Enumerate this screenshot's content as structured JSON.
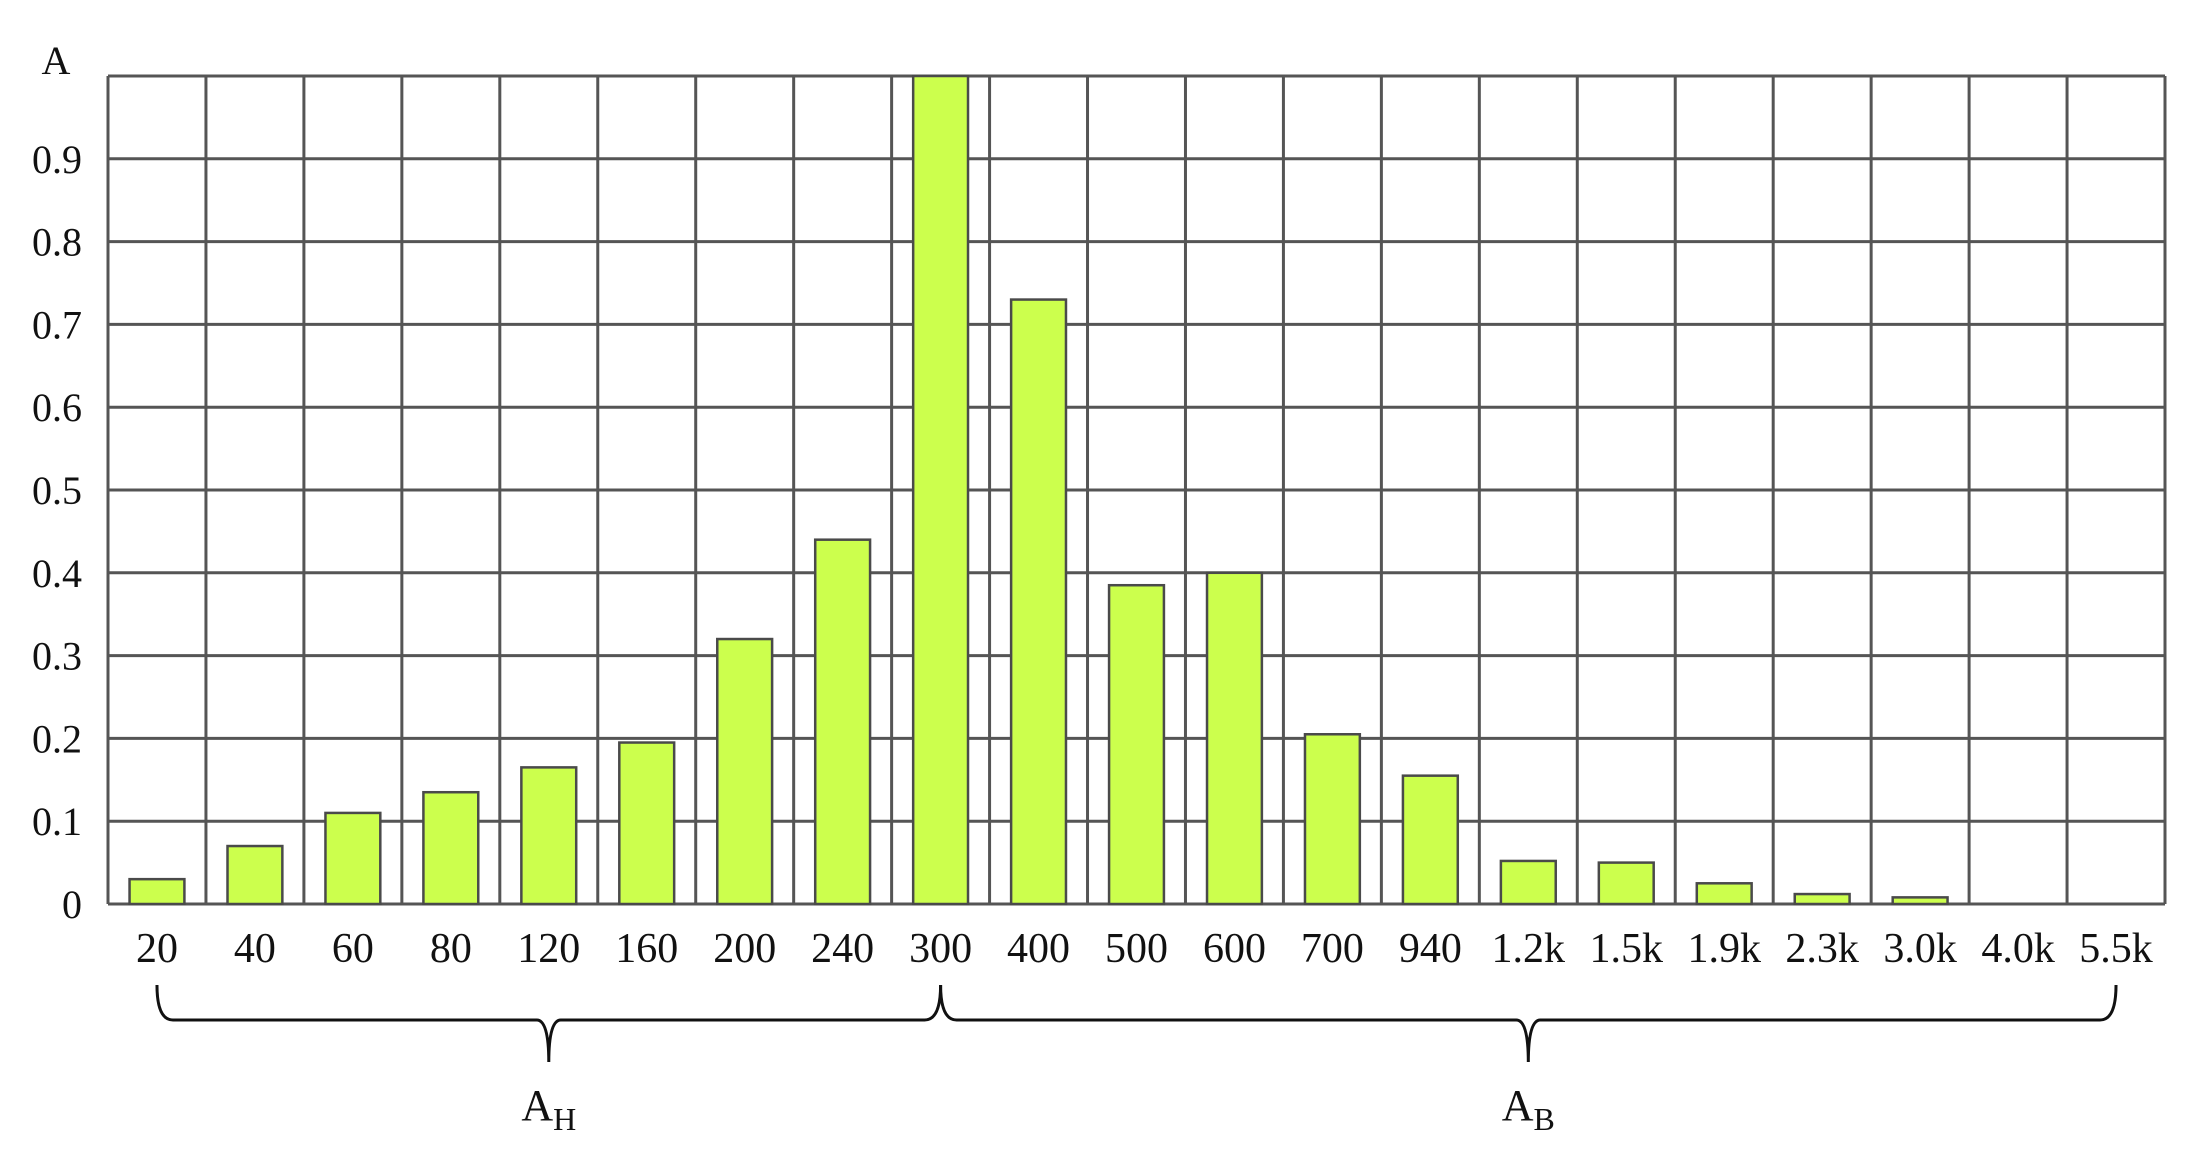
{
  "chart_data": {
    "type": "bar",
    "ylabel": "A",
    "categories": [
      "20",
      "40",
      "60",
      "80",
      "120",
      "160",
      "200",
      "240",
      "300",
      "400",
      "500",
      "600",
      "700",
      "940",
      "1.2k",
      "1.5k",
      "1.9k",
      "2.3k",
      "3.0k",
      "4.0k",
      "5.5k"
    ],
    "values": [
      0.03,
      0.07,
      0.11,
      0.135,
      0.165,
      0.195,
      0.32,
      0.44,
      1.0,
      0.73,
      0.385,
      0.4,
      0.205,
      0.155,
      0.052,
      0.05,
      0.025,
      0.012,
      0.008,
      0,
      0
    ],
    "yticks": [
      "0",
      "0.1",
      "0.2",
      "0.3",
      "0.4",
      "0.5",
      "0.6",
      "0.7",
      "0.8",
      "0.9"
    ],
    "ylim": [
      0,
      1.0
    ],
    "grid": true,
    "bar_color": "#ccff4d",
    "brace_groups": [
      {
        "label_main": "A",
        "label_sub": "H",
        "from": "20",
        "to": "300"
      },
      {
        "label_main": "A",
        "label_sub": "B",
        "from": "300",
        "to": "5.5k"
      }
    ]
  }
}
